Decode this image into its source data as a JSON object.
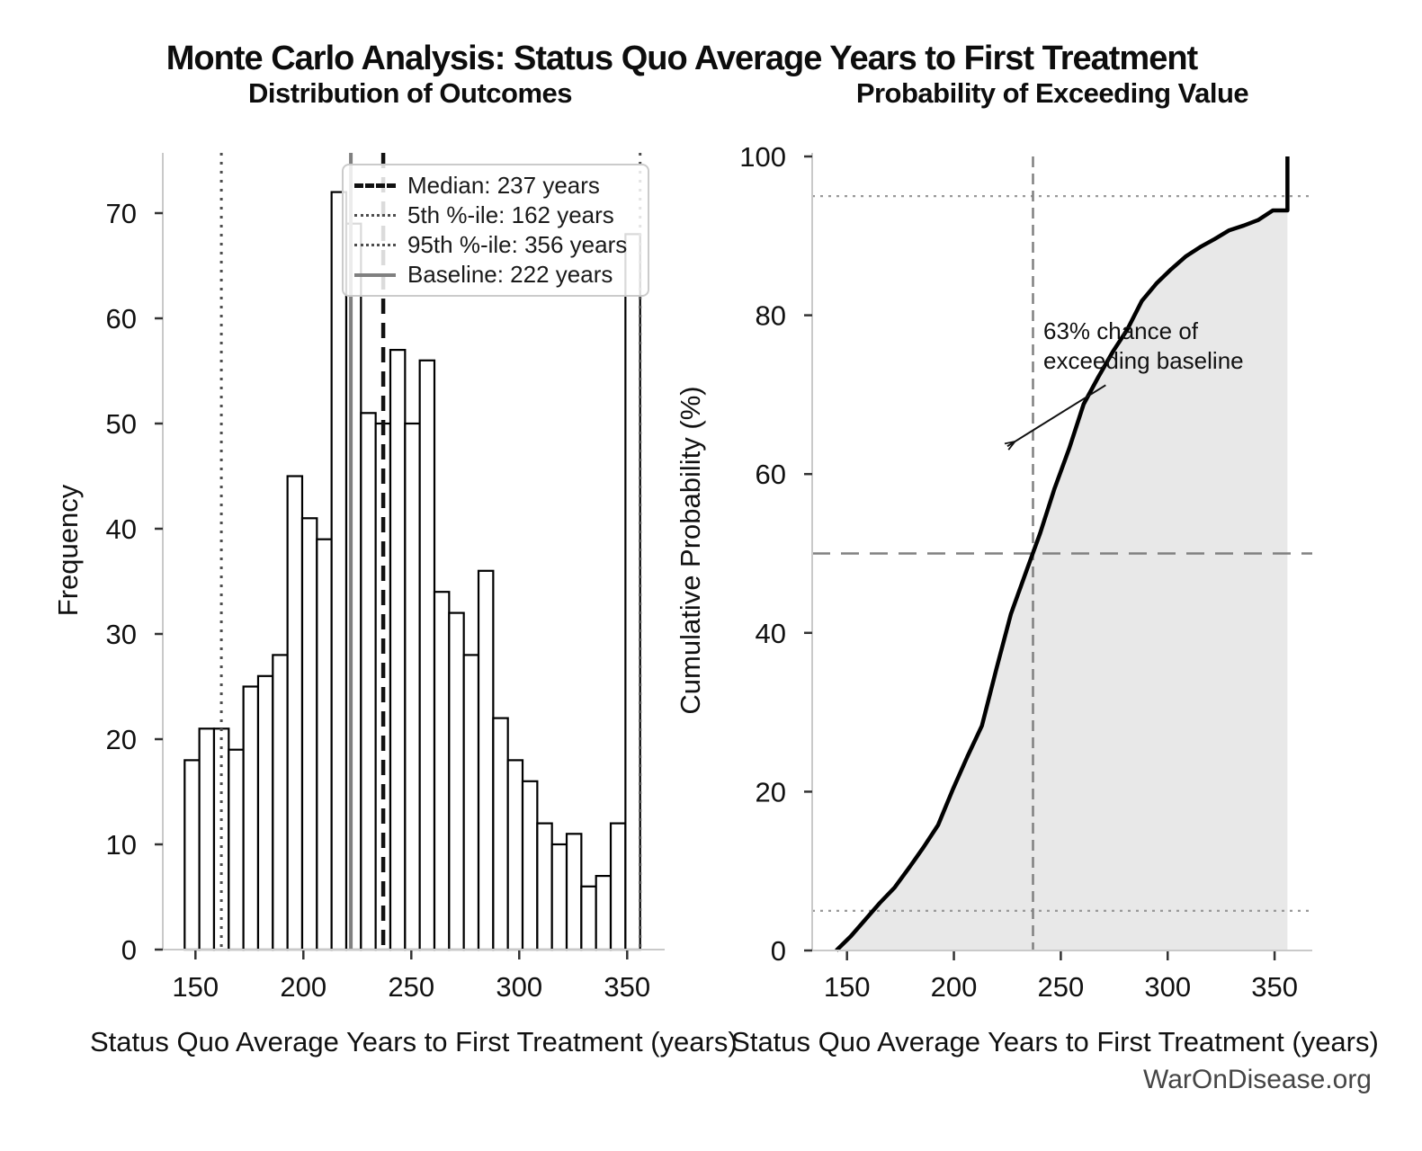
{
  "header": {
    "title": "Monte Carlo Analysis: Status Quo Average Years to First Treatment"
  },
  "footer": {
    "watermark": "WarOnDisease.org"
  },
  "colors": {
    "background": "#ffffff",
    "bar_fill": "#ffffff",
    "bar_edge": "#000000",
    "spine": "#c9c9c9",
    "tick": "#333333",
    "text": "#111111",
    "median_line": "#111111",
    "percentile_line": "#4d4d4d",
    "baseline_line": "#808080",
    "cdf_curve": "#000000",
    "cdf_fill": "#e8e8e8",
    "ref_dashed": "#808080",
    "ref_dotted": "#999999",
    "legend_border": "#cbcbcb",
    "watermark": "#454545"
  },
  "legend": {
    "entries": [
      {
        "name": "median",
        "label": "Median: 237 years"
      },
      {
        "name": "p5",
        "label": "5th %-ile: 162 years"
      },
      {
        "name": "p95",
        "label": "95th %-ile: 356 years"
      },
      {
        "name": "baseline",
        "label": "Baseline: 222 years"
      }
    ]
  },
  "chart_data": [
    {
      "type": "bar",
      "title": "Distribution of Outcomes",
      "xlabel": "Status Quo Average Years to First Treatment (years)",
      "ylabel": "Frequency",
      "bin_start": 145,
      "bin_width": 6.8065,
      "frequencies": [
        18,
        21,
        21,
        19,
        25,
        26,
        28,
        45,
        41,
        39,
        72,
        69,
        51,
        50,
        57,
        50,
        56,
        34,
        32,
        28,
        36,
        22,
        18,
        16,
        12,
        10,
        11,
        6,
        7,
        12,
        68
      ],
      "xticks": [
        150,
        200,
        250,
        300,
        350
      ],
      "yticks": [
        0,
        10,
        20,
        30,
        40,
        50,
        60,
        70
      ],
      "xlim": [
        136,
        368
      ],
      "ylim": [
        0,
        75.7
      ],
      "grid": false,
      "ref_lines": {
        "median": 237,
        "p5": 162,
        "p95": 356,
        "baseline": 222
      }
    },
    {
      "type": "line",
      "title": "Probability of Exceeding Value",
      "xlabel": "Status Quo Average Years to First Treatment (years)",
      "ylabel": "Cumulative Probability (%)",
      "cumulative_points": [
        [
          145,
          0
        ],
        [
          151.8,
          1.8
        ],
        [
          158.6,
          3.9
        ],
        [
          165.4,
          6
        ],
        [
          172.2,
          7.9
        ],
        [
          179,
          10.4
        ],
        [
          185.8,
          13
        ],
        [
          192.6,
          15.8
        ],
        [
          199.5,
          20.3
        ],
        [
          206.3,
          24.4
        ],
        [
          213.1,
          28.3
        ],
        [
          219.9,
          35.5
        ],
        [
          226.7,
          42.4
        ],
        [
          233.5,
          47.5
        ],
        [
          240.3,
          52.5
        ],
        [
          247.1,
          58.2
        ],
        [
          253.9,
          63.2
        ],
        [
          260.7,
          68.8
        ],
        [
          267.5,
          72.2
        ],
        [
          274.3,
          75.4
        ],
        [
          281.1,
          78.2
        ],
        [
          287.9,
          81.8
        ],
        [
          294.7,
          84
        ],
        [
          301.6,
          85.8
        ],
        [
          308.4,
          87.4
        ],
        [
          315.2,
          88.6
        ],
        [
          322,
          89.6
        ],
        [
          328.8,
          90.7
        ],
        [
          335.6,
          91.3
        ],
        [
          342.4,
          92
        ],
        [
          349.2,
          93.2
        ],
        [
          356,
          93.2
        ]
      ],
      "terminal_jump": {
        "x": 356,
        "from": 93.2,
        "to": 100
      },
      "xticks": [
        150,
        200,
        250,
        300,
        350
      ],
      "yticks": [
        0,
        20,
        40,
        60,
        80,
        100
      ],
      "xlim": [
        136,
        368
      ],
      "ylim": [
        0,
        100
      ],
      "grid": false,
      "fill_under_curve": true,
      "ref_lines": {
        "h_dotted": [
          5,
          95
        ],
        "h_dashed": [
          50
        ],
        "v_dashed": [
          237
        ]
      },
      "annotation": {
        "text": "63% chance of\nexceeding baseline",
        "arrow_tip_data": [
          225,
          63.5
        ],
        "arrow_start_data": [
          271,
          71.2
        ]
      }
    }
  ]
}
